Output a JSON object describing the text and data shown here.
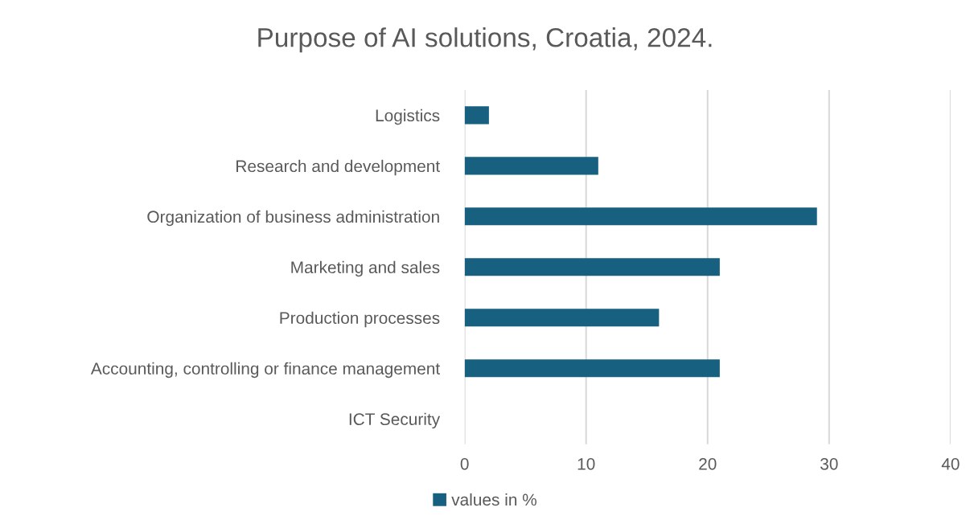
{
  "chart_data": {
    "type": "bar",
    "title": "Purpose of AI solutions, Croatia, 2024.",
    "orientation": "horizontal",
    "categories": [
      "Logistics",
      "Research and development",
      "Organization of business administration",
      "Marketing and sales",
      "Production processes",
      "Accounting, controlling or finance management",
      "ICT Security"
    ],
    "series": [
      {
        "name": "values in %",
        "color": "#17607f",
        "values": [
          2,
          11,
          29,
          21,
          16,
          21,
          0
        ]
      }
    ],
    "xlim": [
      0,
      40
    ],
    "xticks": [
      0,
      10,
      20,
      30,
      40
    ],
    "grid": "x",
    "legend": "bottom"
  }
}
